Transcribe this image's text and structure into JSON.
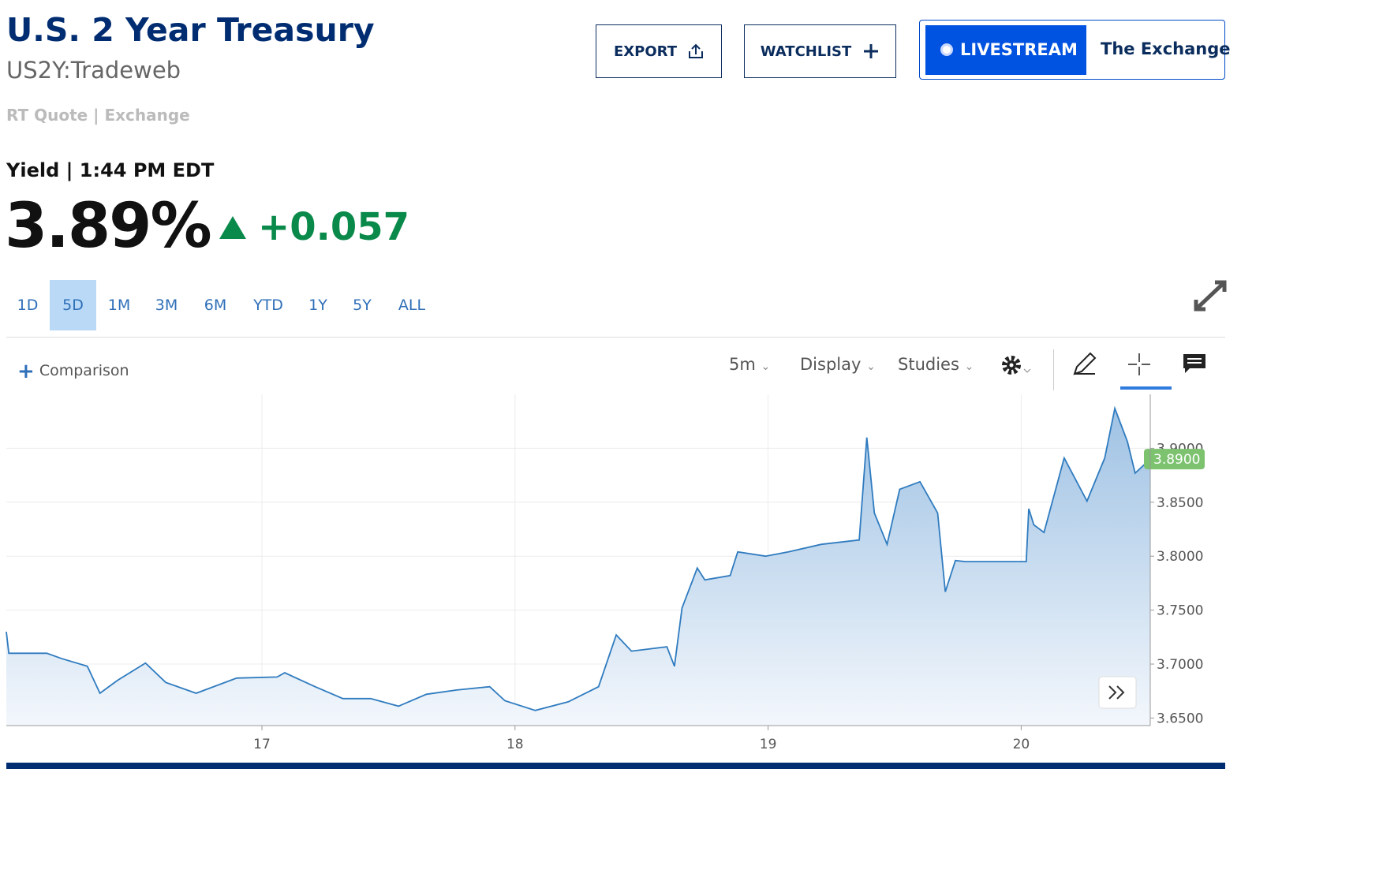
{
  "header": {
    "title": "U.S. 2 Year Treasury",
    "symbol": "US2Y:Tradeweb",
    "quote_source": "RT Quote | Exchange"
  },
  "buttons": {
    "export": "EXPORT",
    "watchlist": "WATCHLIST",
    "livestream": "LIVESTREAM",
    "exchange": "The Exchange"
  },
  "quote": {
    "label": "Yield | 1:44 PM EDT",
    "price": "3.89%",
    "change": "+0.057"
  },
  "ranges": [
    "1D",
    "5D",
    "1M",
    "3M",
    "6M",
    "YTD",
    "1Y",
    "5Y",
    "ALL"
  ],
  "toolbar": {
    "comparison": "Comparison",
    "interval": "5m",
    "display": "Display",
    "studies": "Studies"
  },
  "chart_data": {
    "type": "area",
    "color": "#2f7bbf",
    "x": [
      15.99,
      16.0,
      16.15,
      16.21,
      16.31,
      16.36,
      16.43,
      16.54,
      16.62,
      16.74,
      16.9,
      17.06,
      17.09,
      17.21,
      17.32,
      17.43,
      17.54,
      17.65,
      17.77,
      17.9,
      17.96,
      18.08,
      18.21,
      18.33,
      18.4,
      18.46,
      18.6,
      18.63,
      18.66,
      18.72,
      18.75,
      18.85,
      18.88,
      18.99,
      19.08,
      19.21,
      19.36,
      19.39,
      19.42,
      19.47,
      19.52,
      19.6,
      19.67,
      19.7,
      19.74,
      19.78,
      20.02,
      20.03,
      20.05,
      20.09,
      20.17,
      20.26,
      20.33,
      20.37,
      20.42,
      20.45,
      20.51
    ],
    "values": [
      3.73,
      3.71,
      3.71,
      3.705,
      3.698,
      3.673,
      3.685,
      3.701,
      3.683,
      3.673,
      3.687,
      3.688,
      3.692,
      3.679,
      3.668,
      3.668,
      3.661,
      3.672,
      3.676,
      3.679,
      3.666,
      3.657,
      3.665,
      3.679,
      3.727,
      3.712,
      3.716,
      3.698,
      3.752,
      3.789,
      3.778,
      3.782,
      3.804,
      3.8,
      3.804,
      3.811,
      3.815,
      3.91,
      3.84,
      3.811,
      3.862,
      3.869,
      3.84,
      3.767,
      3.796,
      3.795,
      3.795,
      3.844,
      3.829,
      3.822,
      3.891,
      3.851,
      3.891,
      3.937,
      3.906,
      3.877,
      3.89
    ],
    "current_label": "3.8900",
    "xlim": [
      15.99,
      20.51
    ],
    "xticks": [
      17,
      18,
      19,
      20
    ],
    "ylim": [
      3.643,
      3.95
    ],
    "yticks": [
      {
        "value": 3.65,
        "label": "3.6500"
      },
      {
        "value": 3.7,
        "label": "3.7000"
      },
      {
        "value": 3.75,
        "label": "3.7500"
      },
      {
        "value": 3.8,
        "label": "3.8000"
      },
      {
        "value": 3.85,
        "label": "3.8500"
      },
      {
        "value": 3.9,
        "label": "3.9000"
      }
    ],
    "grid": true
  }
}
